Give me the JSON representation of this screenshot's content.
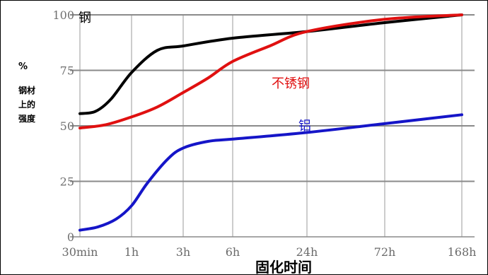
{
  "chart_data": {
    "type": "line",
    "ylabel_lines": [
      "%",
      "钢材",
      "上的",
      "强度"
    ],
    "xlabel": "固化时间",
    "categories": [
      "30min",
      "1h",
      "3h",
      "6h",
      "24h",
      "72h",
      "168h"
    ],
    "yticks": [
      0,
      25,
      50,
      75,
      100
    ],
    "ylim": [
      0,
      100
    ],
    "grid": "both",
    "series": [
      {
        "name": "钢",
        "color": "#000000",
        "x": [
          0,
          0.3,
          0.6,
          1.0,
          1.5,
          2.0,
          3.0,
          4.0,
          5.0,
          6.0
        ],
        "values": [
          55.5,
          56.5,
          62,
          74,
          84,
          86,
          89.5,
          92.5,
          96.5,
          100
        ]
      },
      {
        "name": "不锈钢",
        "color": "#e01010",
        "x": [
          0,
          0.5,
          1.0,
          1.5,
          2.0,
          2.5,
          3.0,
          3.5,
          4.0,
          5.0,
          6.0
        ],
        "values": [
          49,
          50.5,
          54,
          58.5,
          65,
          71.5,
          79,
          86,
          92.5,
          98,
          100
        ]
      },
      {
        "name": "铝",
        "color": "#1515c8",
        "x": [
          0,
          0.35,
          0.7,
          1.0,
          1.3,
          1.7,
          2.0,
          2.5,
          3.0,
          4.0,
          5.0,
          6.0
        ],
        "values": [
          3,
          4.5,
          8,
          14,
          24,
          35,
          40,
          43,
          44,
          47,
          51,
          55
        ]
      }
    ]
  }
}
